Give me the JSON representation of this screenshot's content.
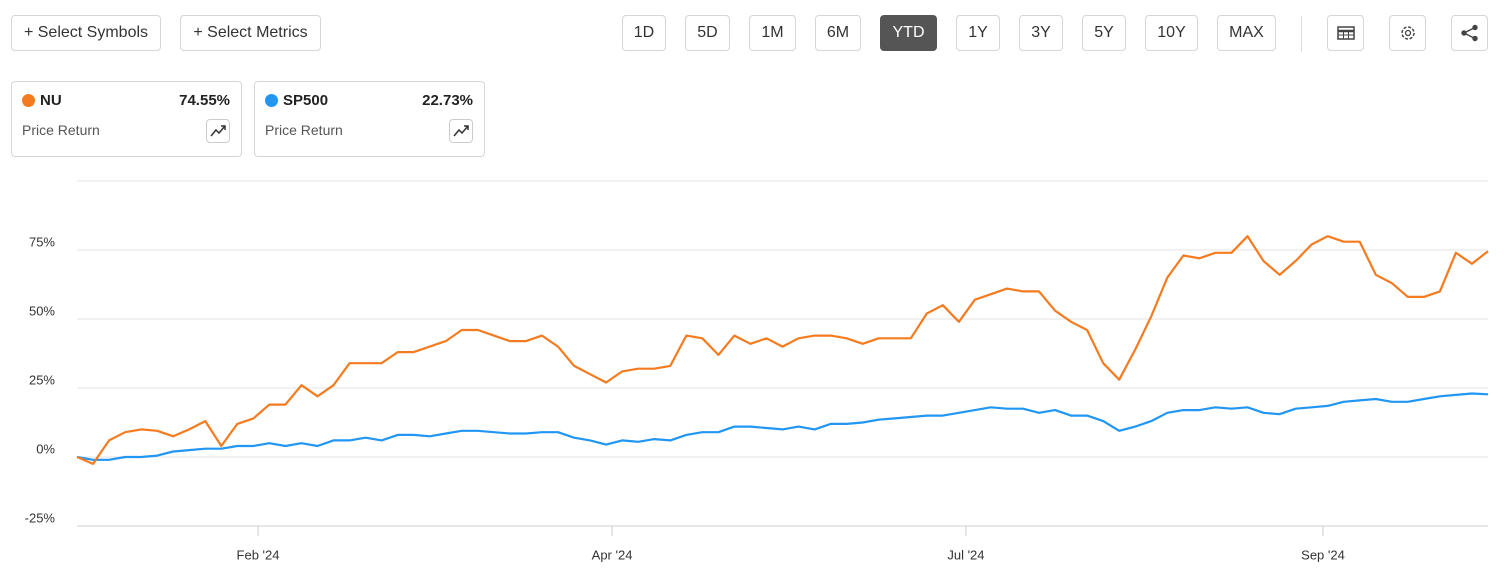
{
  "toolbar": {
    "buttons": [
      "+ Select Symbols",
      "+ Select Metrics"
    ],
    "periods": [
      "1D",
      "5D",
      "1M",
      "6M",
      "YTD",
      "1Y",
      "3Y",
      "5Y",
      "10Y",
      "MAX"
    ],
    "active_period": "YTD"
  },
  "chart_data": {
    "type": "line",
    "series": [
      {
        "name": "NU",
        "color": "#f47b20",
        "return": "74.55%",
        "metric": "Price Return",
        "values": [
          0,
          -2.5,
          6,
          9,
          10,
          9.5,
          7.5,
          10,
          13,
          4,
          12,
          14,
          19,
          19,
          26,
          22,
          26,
          34,
          34,
          34,
          38,
          38,
          40,
          42,
          46,
          46,
          44,
          42,
          42,
          44,
          40,
          33,
          30,
          27,
          31,
          32,
          32,
          33,
          44,
          43,
          37,
          44,
          41,
          43,
          40,
          43,
          44,
          44,
          43,
          41,
          43,
          43,
          43,
          52,
          55,
          49,
          57,
          59,
          61,
          60,
          60,
          53,
          49,
          46,
          34,
          28,
          39,
          51,
          65,
          73,
          72,
          74,
          74,
          80,
          71,
          66,
          71,
          77,
          80,
          78,
          78,
          66,
          63,
          58,
          58,
          60,
          74,
          70,
          74.55
        ]
      },
      {
        "name": "SP500",
        "color": "#2196f3",
        "return": "22.73%",
        "metric": "Price Return",
        "values": [
          0,
          -1,
          -1,
          0,
          0,
          0.5,
          2,
          2.5,
          3,
          3,
          4,
          4,
          5,
          4,
          5,
          4,
          6,
          6,
          7,
          6,
          8,
          8,
          7.5,
          8.5,
          9.5,
          9.5,
          9,
          8.5,
          8.5,
          9,
          9,
          7,
          6,
          4.5,
          6,
          5.5,
          6.5,
          6,
          8,
          9,
          9,
          11,
          11,
          10.5,
          10,
          11,
          10,
          12,
          12,
          12.5,
          13.5,
          14,
          14.5,
          15,
          15,
          16,
          17,
          18,
          17.5,
          17.5,
          16,
          17,
          15,
          15,
          13,
          9.5,
          11,
          13,
          16,
          17,
          17,
          18,
          17.5,
          18,
          16,
          15.5,
          17.5,
          18,
          18.5,
          20,
          20.5,
          21,
          20,
          20,
          21,
          22,
          22.5,
          23,
          22.73
        ]
      }
    ],
    "xlim": [
      0,
      88
    ],
    "xticks": [
      {
        "value": 11.29,
        "label": "Feb '24"
      },
      {
        "value": 33.37,
        "label": "Apr '24"
      },
      {
        "value": 55.44,
        "label": "Jul '24"
      },
      {
        "value": 77.71,
        "label": "Sep '24"
      }
    ],
    "ylim": [
      -25,
      100
    ],
    "yticks": [
      {
        "value": -25,
        "label": "-25%"
      },
      {
        "value": 0,
        "label": "0%"
      },
      {
        "value": 25,
        "label": "25%"
      },
      {
        "value": 50,
        "label": "50%"
      },
      {
        "value": 75,
        "label": "75%"
      }
    ],
    "grid": true
  }
}
